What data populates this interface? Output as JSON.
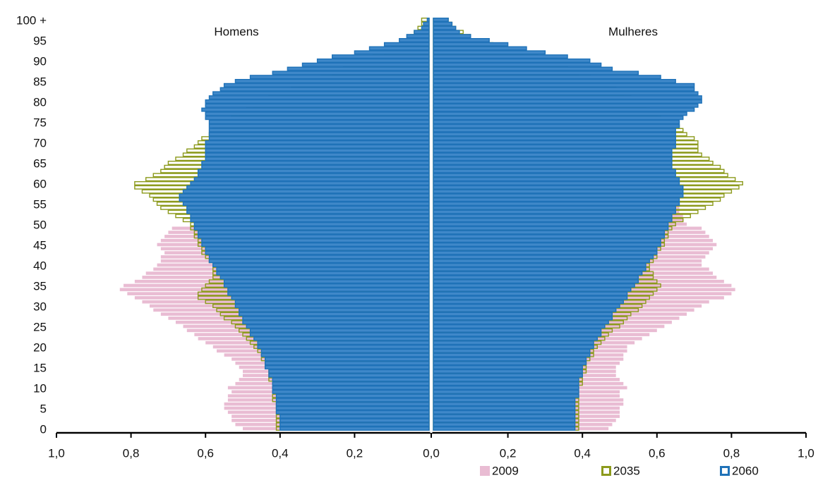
{
  "chart_data": {
    "type": "pyramid",
    "left_title": "Homens",
    "right_title": "Mulheres",
    "categories": [
      "0",
      null,
      null,
      null,
      null,
      "5",
      null,
      null,
      null,
      null,
      "10",
      null,
      null,
      null,
      null,
      "15",
      null,
      null,
      null,
      null,
      "20",
      null,
      null,
      null,
      null,
      "25",
      null,
      null,
      null,
      null,
      "30",
      null,
      null,
      null,
      null,
      "35",
      null,
      null,
      null,
      null,
      "40",
      null,
      null,
      null,
      null,
      "45",
      null,
      null,
      null,
      null,
      "50",
      null,
      null,
      null,
      null,
      "55",
      null,
      null,
      null,
      null,
      "60",
      null,
      null,
      null,
      null,
      "65",
      null,
      null,
      null,
      null,
      "70",
      null,
      null,
      null,
      null,
      "75",
      null,
      null,
      null,
      null,
      "80",
      null,
      null,
      null,
      null,
      "85",
      null,
      null,
      null,
      null,
      "90",
      null,
      null,
      null,
      null,
      "95",
      null,
      null,
      null,
      null,
      "100 +"
    ],
    "xlim": [
      0,
      1
    ],
    "xticks": [
      {
        "value": 0,
        "label": "0,0"
      },
      {
        "value": 0.2,
        "label": "0,2"
      },
      {
        "value": 0.4,
        "label": "0,4"
      },
      {
        "value": 0.6,
        "label": "0,6"
      },
      {
        "value": 0.8,
        "label": "0,8"
      },
      {
        "value": 1,
        "label": "1,0"
      }
    ],
    "series": [
      {
        "name": "2009",
        "color": "#e9bcd3",
        "style": "filled",
        "left": [
          0.5,
          0.52,
          0.53,
          0.53,
          0.54,
          0.55,
          0.55,
          0.54,
          0.54,
          0.53,
          0.54,
          0.52,
          0.51,
          0.5,
          0.5,
          0.51,
          0.52,
          0.53,
          0.55,
          0.57,
          0.58,
          0.6,
          0.62,
          0.63,
          0.65,
          0.66,
          0.68,
          0.7,
          0.72,
          0.74,
          0.75,
          0.77,
          0.79,
          0.81,
          0.83,
          0.82,
          0.79,
          0.77,
          0.76,
          0.74,
          0.73,
          0.72,
          0.72,
          0.71,
          0.72,
          0.73,
          0.72,
          0.71,
          0.7,
          0.69,
          0.62,
          0.62,
          0.61,
          0.61,
          0.6,
          0.6,
          0.59,
          0.58,
          0.57,
          0.56,
          0.55,
          0.54,
          0.53,
          0.51,
          0.5,
          0.48,
          0.47,
          0.46,
          0.44,
          0.43,
          0.42,
          0.41,
          0.39,
          0.38,
          0.36,
          0.35,
          0.33,
          0.31,
          0.29,
          0.27,
          0.25,
          0.23,
          0.21,
          0.19,
          0.17,
          0.15,
          0.13,
          0.11,
          0.09,
          0.08,
          0.06,
          0.05,
          0.04,
          0.03,
          0.02,
          0.015,
          0.012,
          0.009,
          0.007,
          0.005,
          0.005
        ],
        "right": [
          0.47,
          0.48,
          0.49,
          0.5,
          0.5,
          0.5,
          0.51,
          0.51,
          0.5,
          0.5,
          0.52,
          0.51,
          0.5,
          0.49,
          0.49,
          0.49,
          0.5,
          0.51,
          0.51,
          0.52,
          0.52,
          0.54,
          0.56,
          0.58,
          0.6,
          0.62,
          0.64,
          0.66,
          0.68,
          0.7,
          0.72,
          0.74,
          0.78,
          0.8,
          0.81,
          0.8,
          0.78,
          0.76,
          0.75,
          0.74,
          0.72,
          0.72,
          0.73,
          0.74,
          0.75,
          0.76,
          0.75,
          0.74,
          0.73,
          0.72,
          0.68,
          0.67,
          0.67,
          0.66,
          0.66,
          0.65,
          0.65,
          0.64,
          0.63,
          0.63,
          0.62,
          0.61,
          0.6,
          0.59,
          0.59,
          0.58,
          0.57,
          0.56,
          0.56,
          0.55,
          0.55,
          0.54,
          0.53,
          0.52,
          0.51,
          0.5,
          0.48,
          0.47,
          0.45,
          0.44,
          0.42,
          0.4,
          0.38,
          0.35,
          0.33,
          0.3,
          0.27,
          0.24,
          0.21,
          0.18,
          0.15,
          0.12,
          0.1,
          0.08,
          0.06,
          0.05,
          0.04,
          0.03,
          0.02,
          0.015,
          0.01
        ]
      },
      {
        "name": "2035",
        "color": "#8c9a1c",
        "style": "outline",
        "left": [
          0.41,
          0.41,
          0.41,
          0.41,
          0.41,
          0.41,
          0.41,
          0.42,
          0.42,
          0.42,
          0.42,
          0.42,
          0.43,
          0.43,
          0.43,
          0.44,
          0.44,
          0.45,
          0.45,
          0.46,
          0.47,
          0.48,
          0.49,
          0.5,
          0.51,
          0.52,
          0.53,
          0.55,
          0.56,
          0.57,
          0.58,
          0.6,
          0.62,
          0.62,
          0.61,
          0.6,
          0.59,
          0.58,
          0.58,
          0.58,
          0.58,
          0.59,
          0.6,
          0.61,
          0.61,
          0.62,
          0.62,
          0.63,
          0.63,
          0.64,
          0.64,
          0.66,
          0.68,
          0.7,
          0.72,
          0.73,
          0.74,
          0.75,
          0.77,
          0.79,
          0.79,
          0.76,
          0.74,
          0.72,
          0.71,
          0.7,
          0.68,
          0.66,
          0.65,
          0.63,
          0.62,
          0.61,
          0.59,
          0.58,
          0.56,
          0.55,
          0.53,
          0.51,
          0.49,
          0.47,
          0.45,
          0.43,
          0.4,
          0.37,
          0.35,
          0.32,
          0.29,
          0.26,
          0.23,
          0.21,
          0.18,
          0.15,
          0.12,
          0.1,
          0.08,
          0.06,
          0.05,
          0.04,
          0.03,
          0.02,
          0.02
        ],
        "right": [
          0.39,
          0.39,
          0.39,
          0.39,
          0.39,
          0.39,
          0.39,
          0.39,
          0.39,
          0.39,
          0.39,
          0.4,
          0.4,
          0.4,
          0.41,
          0.41,
          0.41,
          0.42,
          0.43,
          0.43,
          0.44,
          0.45,
          0.46,
          0.47,
          0.48,
          0.5,
          0.51,
          0.52,
          0.53,
          0.55,
          0.56,
          0.57,
          0.58,
          0.59,
          0.6,
          0.61,
          0.6,
          0.59,
          0.59,
          0.58,
          0.58,
          0.59,
          0.6,
          0.6,
          0.61,
          0.62,
          0.62,
          0.63,
          0.63,
          0.64,
          0.65,
          0.67,
          0.69,
          0.71,
          0.73,
          0.75,
          0.77,
          0.78,
          0.8,
          0.82,
          0.83,
          0.81,
          0.79,
          0.78,
          0.77,
          0.75,
          0.74,
          0.72,
          0.71,
          0.71,
          0.71,
          0.7,
          0.68,
          0.67,
          0.66,
          0.62,
          0.61,
          0.6,
          0.58,
          0.57,
          0.55,
          0.53,
          0.51,
          0.49,
          0.47,
          0.45,
          0.42,
          0.39,
          0.36,
          0.34,
          0.32,
          0.28,
          0.24,
          0.2,
          0.16,
          0.12,
          0.1,
          0.08,
          0.06,
          0.05,
          0.04
        ]
      },
      {
        "name": "2060",
        "color": "#1f72b8",
        "fill": "#3f88c9",
        "style": "outline",
        "left": [
          0.4,
          0.4,
          0.4,
          0.4,
          0.41,
          0.41,
          0.41,
          0.41,
          0.41,
          0.42,
          0.42,
          0.42,
          0.42,
          0.43,
          0.43,
          0.44,
          0.44,
          0.44,
          0.45,
          0.45,
          0.46,
          0.46,
          0.47,
          0.48,
          0.48,
          0.49,
          0.5,
          0.5,
          0.51,
          0.51,
          0.52,
          0.52,
          0.53,
          0.54,
          0.54,
          0.55,
          0.55,
          0.56,
          0.57,
          0.57,
          0.58,
          0.59,
          0.59,
          0.6,
          0.6,
          0.61,
          0.61,
          0.62,
          0.62,
          0.63,
          0.63,
          0.64,
          0.64,
          0.65,
          0.65,
          0.66,
          0.67,
          0.67,
          0.66,
          0.65,
          0.64,
          0.63,
          0.62,
          0.62,
          0.61,
          0.61,
          0.6,
          0.6,
          0.6,
          0.6,
          0.6,
          0.59,
          0.59,
          0.59,
          0.59,
          0.59,
          0.6,
          0.6,
          0.61,
          0.6,
          0.6,
          0.59,
          0.58,
          0.56,
          0.55,
          0.52,
          0.48,
          0.42,
          0.38,
          0.34,
          0.3,
          0.26,
          0.2,
          0.16,
          0.12,
          0.08,
          0.06,
          0.04,
          0.02,
          0.015,
          0.005
        ],
        "right": [
          0.38,
          0.38,
          0.38,
          0.38,
          0.38,
          0.38,
          0.38,
          0.38,
          0.39,
          0.39,
          0.39,
          0.39,
          0.39,
          0.4,
          0.4,
          0.4,
          0.41,
          0.41,
          0.42,
          0.42,
          0.43,
          0.43,
          0.44,
          0.45,
          0.45,
          0.46,
          0.47,
          0.48,
          0.48,
          0.49,
          0.5,
          0.51,
          0.52,
          0.52,
          0.53,
          0.54,
          0.55,
          0.55,
          0.56,
          0.57,
          0.57,
          0.58,
          0.59,
          0.6,
          0.6,
          0.61,
          0.61,
          0.62,
          0.62,
          0.63,
          0.63,
          0.64,
          0.64,
          0.65,
          0.65,
          0.66,
          0.66,
          0.67,
          0.67,
          0.67,
          0.66,
          0.66,
          0.65,
          0.65,
          0.64,
          0.64,
          0.64,
          0.64,
          0.64,
          0.65,
          0.65,
          0.65,
          0.65,
          0.65,
          0.66,
          0.66,
          0.67,
          0.68,
          0.7,
          0.71,
          0.72,
          0.72,
          0.71,
          0.7,
          0.7,
          0.65,
          0.61,
          0.55,
          0.48,
          0.45,
          0.42,
          0.36,
          0.3,
          0.25,
          0.2,
          0.15,
          0.1,
          0.07,
          0.06,
          0.05,
          0.04
        ]
      }
    ]
  }
}
